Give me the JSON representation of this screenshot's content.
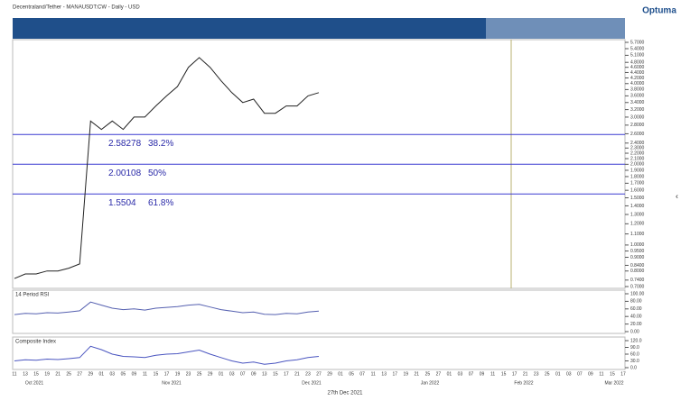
{
  "logo": "Optuma",
  "cursor_date": "27th Dec 2021",
  "chart_data": [
    {
      "type": "line",
      "title": "Decentraland/Tether - MANAUSDT:CW - Daily - USD",
      "log_scale": true,
      "color": "#222222",
      "categories": [
        "11",
        "13",
        "15",
        "19",
        "21",
        "25",
        "27",
        "29",
        "01",
        "03",
        "05",
        "09",
        "11",
        "15",
        "17",
        "19",
        "23",
        "25",
        "29",
        "01",
        "03",
        "07",
        "09",
        "13",
        "15",
        "17",
        "21",
        "23",
        "27",
        "29",
        "01",
        "05",
        "07",
        "11",
        "13",
        "17",
        "19",
        "21",
        "25",
        "27",
        "01",
        "03",
        "07",
        "09",
        "11",
        "15",
        "17",
        "21",
        "23",
        "25",
        "01",
        "03",
        "07",
        "09",
        "11",
        "15",
        "17"
      ],
      "x_groups": [
        "Oct 2021",
        "Nov 2021",
        "Dec 2021",
        "Jan 2022",
        "Feb 2022",
        "Mar 2022"
      ],
      "values": [
        0.75,
        0.78,
        0.78,
        0.8,
        0.8,
        0.82,
        0.85,
        2.9,
        2.7,
        2.9,
        2.7,
        3.0,
        3.0,
        3.3,
        3.6,
        3.9,
        4.6,
        5.0,
        4.6,
        4.1,
        3.7,
        3.4,
        3.5,
        3.1,
        3.1,
        3.3,
        3.3,
        3.6,
        3.7,
        null,
        null,
        null,
        null,
        null,
        null,
        null,
        null,
        null,
        null,
        null,
        null,
        null,
        null,
        null,
        null,
        null,
        null,
        null,
        null,
        null,
        null,
        null,
        null,
        null,
        null,
        null,
        null
      ],
      "ylim": [
        0.7,
        5.7
      ],
      "yticks": [
        {
          "value": 5.7,
          "label": "5.7000"
        },
        {
          "value": 5.4,
          "label": "5.4000"
        },
        {
          "value": 5.1,
          "label": "5.1000"
        },
        {
          "value": 4.8,
          "label": "4.8000"
        },
        {
          "value": 4.6,
          "label": "4.6000"
        },
        {
          "value": 4.4,
          "label": "4.4000"
        },
        {
          "value": 4.2,
          "label": "4.2000"
        },
        {
          "value": 4,
          "label": "4.0000"
        },
        {
          "value": 3.8,
          "label": "3.8000"
        },
        {
          "value": 3.6,
          "label": "3.6000"
        },
        {
          "value": 3.4,
          "label": "3.4000"
        },
        {
          "value": 3.2,
          "label": "3.2000"
        },
        {
          "value": 3,
          "label": "3.0000"
        },
        {
          "value": 2.8,
          "label": "2.8000"
        },
        {
          "value": 2.6,
          "label": "2.6000"
        },
        {
          "value": 2.4,
          "label": "2.4000"
        },
        {
          "value": 2.3,
          "label": "2.3000"
        },
        {
          "value": 2.2,
          "label": "2.2000"
        },
        {
          "value": 2.1,
          "label": "2.1000"
        },
        {
          "value": 2,
          "label": "2.0000"
        },
        {
          "value": 1.9,
          "label": "1.9000"
        },
        {
          "value": 1.8,
          "label": "1.8000"
        },
        {
          "value": 1.7,
          "label": "1.7000"
        },
        {
          "value": 1.6,
          "label": "1.6000"
        },
        {
          "value": 1.5,
          "label": "1.5000"
        },
        {
          "value": 1.4,
          "label": "1.4000"
        },
        {
          "value": 1.3,
          "label": "1.3000"
        },
        {
          "value": 1.2,
          "label": "1.2000"
        },
        {
          "value": 1.1,
          "label": "1.1000"
        },
        {
          "value": 1,
          "label": "1.0000"
        },
        {
          "value": 0.95,
          "label": "0.9500"
        },
        {
          "value": 0.9,
          "label": "0.9000"
        },
        {
          "value": 0.84,
          "label": "0.8400"
        },
        {
          "value": 0.8,
          "label": "0.8000"
        },
        {
          "value": 0.74,
          "label": "0.7400"
        },
        {
          "value": 0.7,
          "label": "0.7000"
        }
      ],
      "annotations": [
        {
          "value": 2.58278,
          "label": "38.2%"
        },
        {
          "value": 2.00108,
          "label": "50%"
        },
        {
          "value": 1.5504,
          "label": "61.8%"
        }
      ],
      "annotation_color": "#3a3ad0"
    },
    {
      "type": "line",
      "title": "14 Period RSI",
      "color": "#5560b0",
      "values": [
        45,
        48,
        47,
        50,
        49,
        52,
        55,
        78,
        70,
        62,
        58,
        60,
        57,
        62,
        64,
        66,
        70,
        72,
        65,
        58,
        54,
        50,
        52,
        46,
        45,
        48,
        47,
        52,
        54,
        null,
        null,
        null,
        null,
        null,
        null,
        null,
        null,
        null,
        null,
        null,
        null,
        null,
        null,
        null,
        null,
        null,
        null,
        null,
        null,
        null,
        null,
        null,
        null,
        null,
        null,
        null,
        null
      ],
      "ylim": [
        0,
        100
      ],
      "yticks": [
        {
          "value": 100,
          "label": "100.00"
        },
        {
          "value": 80,
          "label": "80.00"
        },
        {
          "value": 60,
          "label": "60.00"
        },
        {
          "value": 40,
          "label": "40.00"
        },
        {
          "value": 20,
          "label": "20.00"
        },
        {
          "value": 0,
          "label": "0.00"
        }
      ]
    },
    {
      "type": "line",
      "title": "Composite Index",
      "color": "#4a55c0",
      "values": [
        30,
        35,
        33,
        38,
        36,
        40,
        45,
        95,
        80,
        60,
        50,
        48,
        45,
        55,
        60,
        62,
        70,
        78,
        60,
        45,
        30,
        20,
        25,
        15,
        20,
        30,
        35,
        45,
        50,
        null,
        null,
        null,
        null,
        null,
        null,
        null,
        null,
        null,
        null,
        null,
        null,
        null,
        null,
        null,
        null,
        null,
        null,
        null,
        null,
        null,
        null,
        null,
        null,
        null,
        null,
        null,
        null
      ],
      "ylim": [
        0,
        120
      ],
      "yticks": [
        {
          "value": 120,
          "label": "120.0"
        },
        {
          "value": 90,
          "label": "90.0"
        },
        {
          "value": 60,
          "label": "60.0"
        },
        {
          "value": 30,
          "label": "30.0"
        },
        {
          "value": 0,
          "label": "0.0"
        }
      ]
    }
  ]
}
